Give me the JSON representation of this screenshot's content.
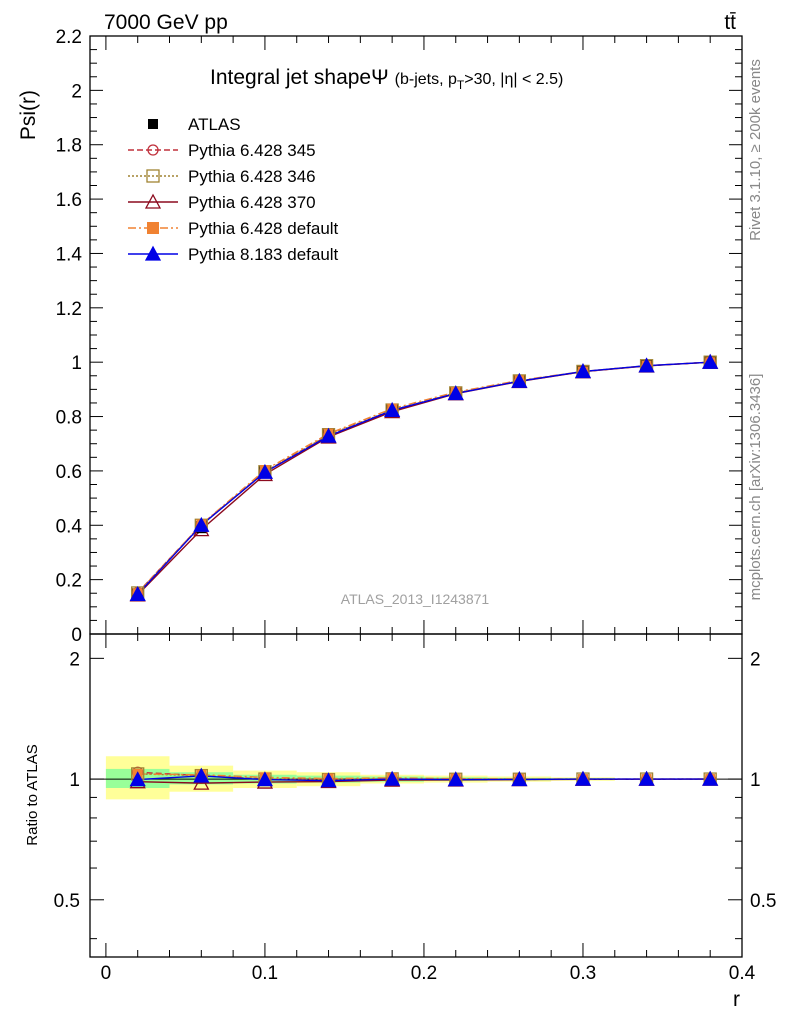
{
  "header": {
    "energy_label": "7000 GeV pp",
    "process_label": "tt̄",
    "side_label_top": "Rivet 3.1.10, ≥ 200k events",
    "side_label_bottom": "mcplots.cern.ch [arXiv:1306.3436]",
    "analysis_id": "ATLAS_2013_I1243871"
  },
  "colors": {
    "ATLAS": "#000000",
    "p345": "#c0303c",
    "p346": "#a08432",
    "p370": "#8c0a1e",
    "p6def": "#f08232",
    "p8def": "#0000e6",
    "band_outer": "#ffff99",
    "band_inner": "#99ff99"
  },
  "chart_data": {
    "type": "line",
    "title_main": "Integral jet shape",
    "title_symbol": "Ψ",
    "title_sub_pre": "(b-jets, p",
    "title_sub_subscript": "T",
    "title_sub_post": ">30, |η| < 2.5)",
    "xlabel": "r",
    "ylabel": "Psi(r)",
    "ratio_ylabel": "Ratio to ATLAS",
    "xlim": [
      -0.01,
      0.4
    ],
    "ylim": [
      0,
      2.2
    ],
    "ratio_ylim": [
      0.36,
      2.3
    ],
    "x_ticks": [
      0,
      0.1,
      0.2,
      0.3,
      0.4
    ],
    "x_tick_labels": [
      "0",
      "0.1",
      "0.2",
      "0.3",
      "0.4"
    ],
    "y_ticks": [
      0,
      0.2,
      0.4,
      0.6,
      0.8,
      1,
      1.2,
      1.4,
      1.6,
      1.8,
      2,
      2.2
    ],
    "y_tick_labels": [
      "0",
      "0.2",
      "0.4",
      "0.6",
      "0.8",
      "1",
      "1.2",
      "1.4",
      "1.6",
      "1.8",
      "2",
      "2.2"
    ],
    "ratio_y_ticks": [
      0.5,
      1,
      2
    ],
    "ratio_y_tick_labels": [
      "0.5",
      "1",
      "2"
    ],
    "x": [
      0.02,
      0.06,
      0.1,
      0.14,
      0.18,
      0.22,
      0.26,
      0.3,
      0.34,
      0.38
    ],
    "bin_edges": [
      0.0,
      0.04,
      0.08,
      0.12,
      0.16,
      0.2,
      0.24,
      0.28,
      0.32,
      0.36,
      0.4
    ],
    "series": [
      {
        "name": "ATLAS",
        "key": "ATLAS",
        "style": "data",
        "values": [
          0.146,
          0.393,
          0.597,
          0.735,
          0.823,
          0.888,
          0.932,
          0.966,
          0.987,
          1.0
        ]
      },
      {
        "name": "Pythia 6.428 345",
        "key": "p345",
        "style": "mc",
        "values": [
          0.152,
          0.402,
          0.597,
          0.731,
          0.822,
          0.886,
          0.93,
          0.965,
          0.987,
          1.0
        ],
        "ratio": [
          1.04,
          1.02,
          1.0,
          0.995,
          0.999,
          0.998,
          0.998,
          0.999,
          1.0,
          1.0
        ]
      },
      {
        "name": "Pythia 6.428 346",
        "key": "p346",
        "style": "mc",
        "values": [
          0.151,
          0.4,
          0.597,
          0.733,
          0.824,
          0.887,
          0.931,
          0.966,
          0.987,
          1.0
        ],
        "ratio": [
          1.03,
          1.02,
          1.0,
          0.997,
          1.001,
          0.999,
          0.999,
          1.0,
          1.0,
          1.0
        ]
      },
      {
        "name": "Pythia 6.428 370",
        "key": "p370",
        "style": "mc",
        "values": [
          0.144,
          0.384,
          0.587,
          0.725,
          0.818,
          0.884,
          0.929,
          0.965,
          0.986,
          1.0
        ],
        "ratio": [
          0.985,
          0.977,
          0.983,
          0.986,
          0.994,
          0.995,
          0.997,
          0.999,
          0.999,
          1.0
        ]
      },
      {
        "name": "Pythia 6.428 default",
        "key": "p6def",
        "style": "mc",
        "values": [
          0.15,
          0.403,
          0.603,
          0.737,
          0.829,
          0.89,
          0.933,
          0.966,
          0.987,
          1.0
        ],
        "ratio": [
          1.03,
          1.025,
          1.01,
          1.003,
          1.007,
          1.002,
          1.001,
          1.0,
          1.0,
          1.0
        ]
      },
      {
        "name": "Pythia 8.183 default",
        "key": "p8def",
        "style": "mc",
        "values": [
          0.146,
          0.4,
          0.595,
          0.728,
          0.823,
          0.885,
          0.93,
          0.966,
          0.987,
          1.0
        ],
        "ratio": [
          0.997,
          1.018,
          0.997,
          0.991,
          1.0,
          0.997,
          0.998,
          1.0,
          1.0,
          1.0
        ]
      }
    ],
    "ratio_band_outer": [
      [
        0.89,
        1.14
      ],
      [
        0.93,
        1.08
      ],
      [
        0.95,
        1.05
      ],
      [
        0.96,
        1.04
      ],
      [
        0.975,
        1.025
      ],
      [
        0.98,
        1.02
      ],
      [
        0.985,
        1.015
      ],
      [
        0.99,
        1.01
      ],
      [
        1.0,
        1.0
      ],
      [
        1.0,
        1.0
      ]
    ],
    "ratio_band_inner": [
      [
        0.95,
        1.06
      ],
      [
        0.97,
        1.04
      ],
      [
        0.975,
        1.025
      ],
      [
        0.98,
        1.02
      ],
      [
        0.985,
        1.015
      ],
      [
        0.99,
        1.01
      ],
      [
        0.993,
        1.007
      ],
      [
        0.995,
        1.005
      ],
      [
        1.0,
        1.0
      ],
      [
        1.0,
        1.0
      ]
    ]
  }
}
